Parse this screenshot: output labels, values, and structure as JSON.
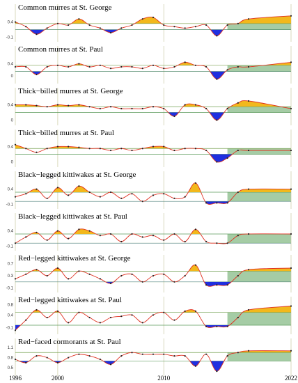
{
  "chart_data": [
    {
      "type": "line",
      "title": "Common murres at St. George",
      "ylim": [
        -0.2,
        0.8
      ],
      "yticks": [
        -0.1,
        0.4
      ],
      "thresholds": [
        0.15,
        0.35
      ],
      "values": [
        0.4,
        0.25,
        0.0,
        0.2,
        0.35,
        0.3,
        0.5,
        0.3,
        0.2,
        0.05,
        0.2,
        0.3,
        0.5,
        0.55,
        0.3,
        0.25,
        0.2,
        0.25,
        0.3,
        -0.05,
        0.3,
        0.35,
        0.5,
        0.6
      ]
    },
    {
      "type": "line",
      "title": "Common murres at St. Paul",
      "ylim": [
        -0.2,
        0.8
      ],
      "yticks": [
        0.0,
        0.4
      ],
      "thresholds": [
        0.15,
        0.35
      ],
      "values": [
        0.3,
        0.3,
        0.05,
        0.3,
        0.35,
        0.3,
        0.4,
        0.3,
        0.35,
        0.25,
        0.3,
        0.3,
        0.25,
        0.35,
        0.25,
        0.3,
        0.45,
        0.35,
        0.3,
        -0.1,
        0.2,
        0.3,
        0.3,
        0.45
      ]
    },
    {
      "type": "line",
      "title": "Thick−billed murres at St. George",
      "ylim": [
        -0.1,
        0.7
      ],
      "yticks": [
        0.0,
        0.4
      ],
      "thresholds": [
        0.2,
        0.35
      ],
      "values": [
        0.4,
        0.4,
        0.38,
        0.35,
        0.4,
        0.38,
        0.4,
        0.35,
        0.3,
        0.35,
        0.3,
        0.3,
        0.3,
        0.35,
        0.3,
        0.1,
        0.4,
        0.4,
        0.3,
        0.0,
        0.3,
        0.45,
        0.5,
        0.3
      ]
    },
    {
      "type": "line",
      "title": "Thick−billed murres at St. Paul",
      "ylim": [
        -0.1,
        0.7
      ],
      "yticks": [
        0.0,
        0.4
      ],
      "thresholds": [
        0.2,
        0.35
      ],
      "values": [
        0.45,
        0.35,
        0.25,
        0.35,
        0.4,
        0.4,
        0.38,
        0.35,
        0.35,
        0.3,
        0.35,
        0.3,
        0.35,
        0.4,
        0.4,
        0.3,
        0.35,
        0.35,
        0.3,
        0.0,
        0.1,
        0.3,
        0.3,
        0.3
      ]
    },
    {
      "type": "line",
      "title": "Black−legged kittiwakes at St. George",
      "ylim": [
        -0.2,
        0.8
      ],
      "yticks": [
        -0.1,
        0.4
      ],
      "thresholds": [
        0.0,
        0.3
      ],
      "values": [
        0.15,
        0.25,
        0.4,
        0.1,
        0.45,
        0.2,
        0.5,
        0.3,
        0.15,
        0.3,
        0.1,
        0.25,
        0.0,
        0.2,
        0.25,
        0.1,
        0.15,
        0.6,
        -0.05,
        -0.05,
        -0.05,
        0.3,
        0.4,
        0.4
      ]
    },
    {
      "type": "line",
      "title": "Black−legged kittiwakes at St. Paul",
      "ylim": [
        -0.2,
        0.8
      ],
      "yticks": [
        -0.1,
        0.4
      ],
      "thresholds": [
        0.0,
        0.3
      ],
      "values": [
        0.0,
        0.2,
        0.35,
        0.1,
        0.4,
        0.15,
        0.45,
        0.4,
        0.25,
        0.3,
        0.05,
        0.3,
        0.2,
        0.25,
        0.1,
        0.3,
        0.05,
        0.45,
        0.05,
        0.0,
        0.0,
        0.25,
        0.3,
        0.3
      ]
    },
    {
      "type": "line",
      "title": "Red−legged kittiwakes at St. George",
      "ylim": [
        -0.2,
        0.8
      ],
      "yticks": [
        -0.1,
        0.3,
        0.7
      ],
      "thresholds": [
        0.1,
        0.45
      ],
      "values": [
        0.2,
        0.35,
        0.5,
        0.3,
        0.55,
        0.2,
        0.45,
        0.35,
        0.2,
        0.05,
        0.3,
        0.35,
        0.1,
        0.3,
        0.35,
        0.1,
        0.3,
        0.65,
        0.0,
        0.0,
        0.0,
        0.3,
        0.5,
        0.55
      ]
    },
    {
      "type": "line",
      "title": "Red−legged kittiwakes at St. Paul",
      "ylim": [
        -0.3,
        0.9
      ],
      "yticks": [
        -0.1,
        0.4,
        0.8
      ],
      "thresholds": [
        0.0,
        0.5
      ],
      "values": [
        -0.2,
        0.2,
        0.6,
        0.3,
        0.55,
        0.1,
        0.5,
        0.3,
        0.1,
        0.3,
        0.35,
        0.4,
        0.1,
        0.4,
        0.5,
        0.2,
        0.55,
        0.55,
        -0.05,
        -0.05,
        -0.05,
        0.3,
        0.6,
        0.75
      ]
    },
    {
      "type": "line",
      "title": "Red−faced cormorants at St. Paul",
      "ylim": [
        0.3,
        1.2
      ],
      "yticks": [
        0.5,
        0.8,
        1.1
      ],
      "thresholds": [
        0.7,
        0.95
      ],
      "values": [
        0.75,
        0.65,
        0.85,
        0.8,
        0.65,
        0.8,
        0.9,
        0.85,
        0.75,
        0.6,
        0.85,
        0.95,
        0.9,
        0.9,
        0.9,
        0.85,
        0.85,
        0.55,
        0.9,
        0.4,
        0.85,
        0.95,
        1.0,
        1.0
      ]
    }
  ],
  "x": [
    1996,
    1997,
    1998,
    1999,
    2000,
    2001,
    2002,
    2003,
    2004,
    2005,
    2006,
    2007,
    2008,
    2009,
    2010,
    2011,
    2012,
    2013,
    2014,
    2015,
    2016,
    2017,
    2018,
    2022
  ],
  "xlim": [
    1996,
    2022
  ],
  "xticks": [
    1996,
    2000,
    2010,
    2022
  ],
  "shade_start": 2016
}
